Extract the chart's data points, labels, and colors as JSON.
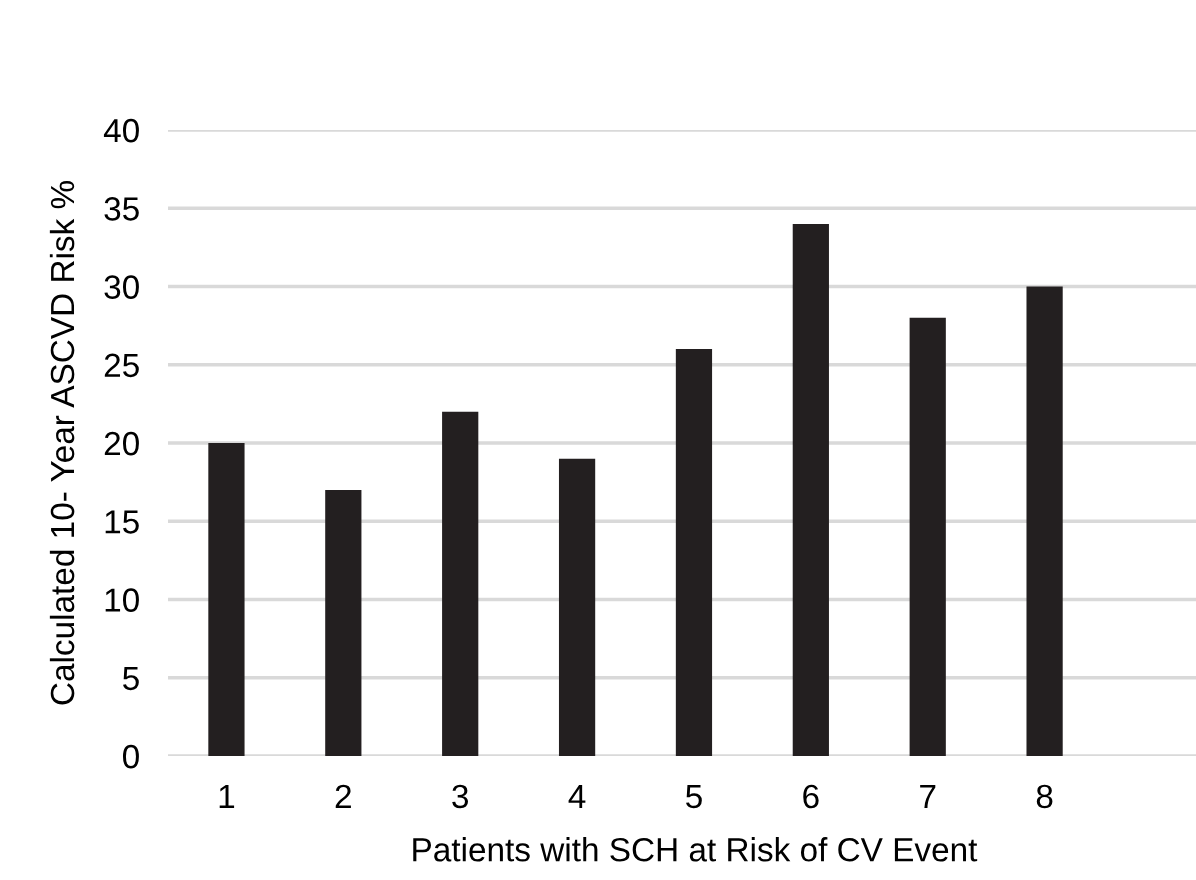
{
  "chart_data": {
    "type": "bar",
    "xlabel": "Patients with SCH at Risk of CV Event",
    "ylabel": "Calculated 10- Year ASCVD Risk %",
    "categories": [
      "1",
      "2",
      "3",
      "4",
      "5",
      "6",
      "7",
      "8",
      null
    ],
    "values": [
      20,
      17,
      22,
      19,
      26,
      34,
      28,
      30,
      null
    ],
    "color": "#231f20",
    "ylim": [
      0,
      40
    ],
    "yticks": [
      0,
      5,
      10,
      15,
      20,
      25,
      30,
      35,
      40
    ],
    "grid": "y",
    "legend": false
  }
}
